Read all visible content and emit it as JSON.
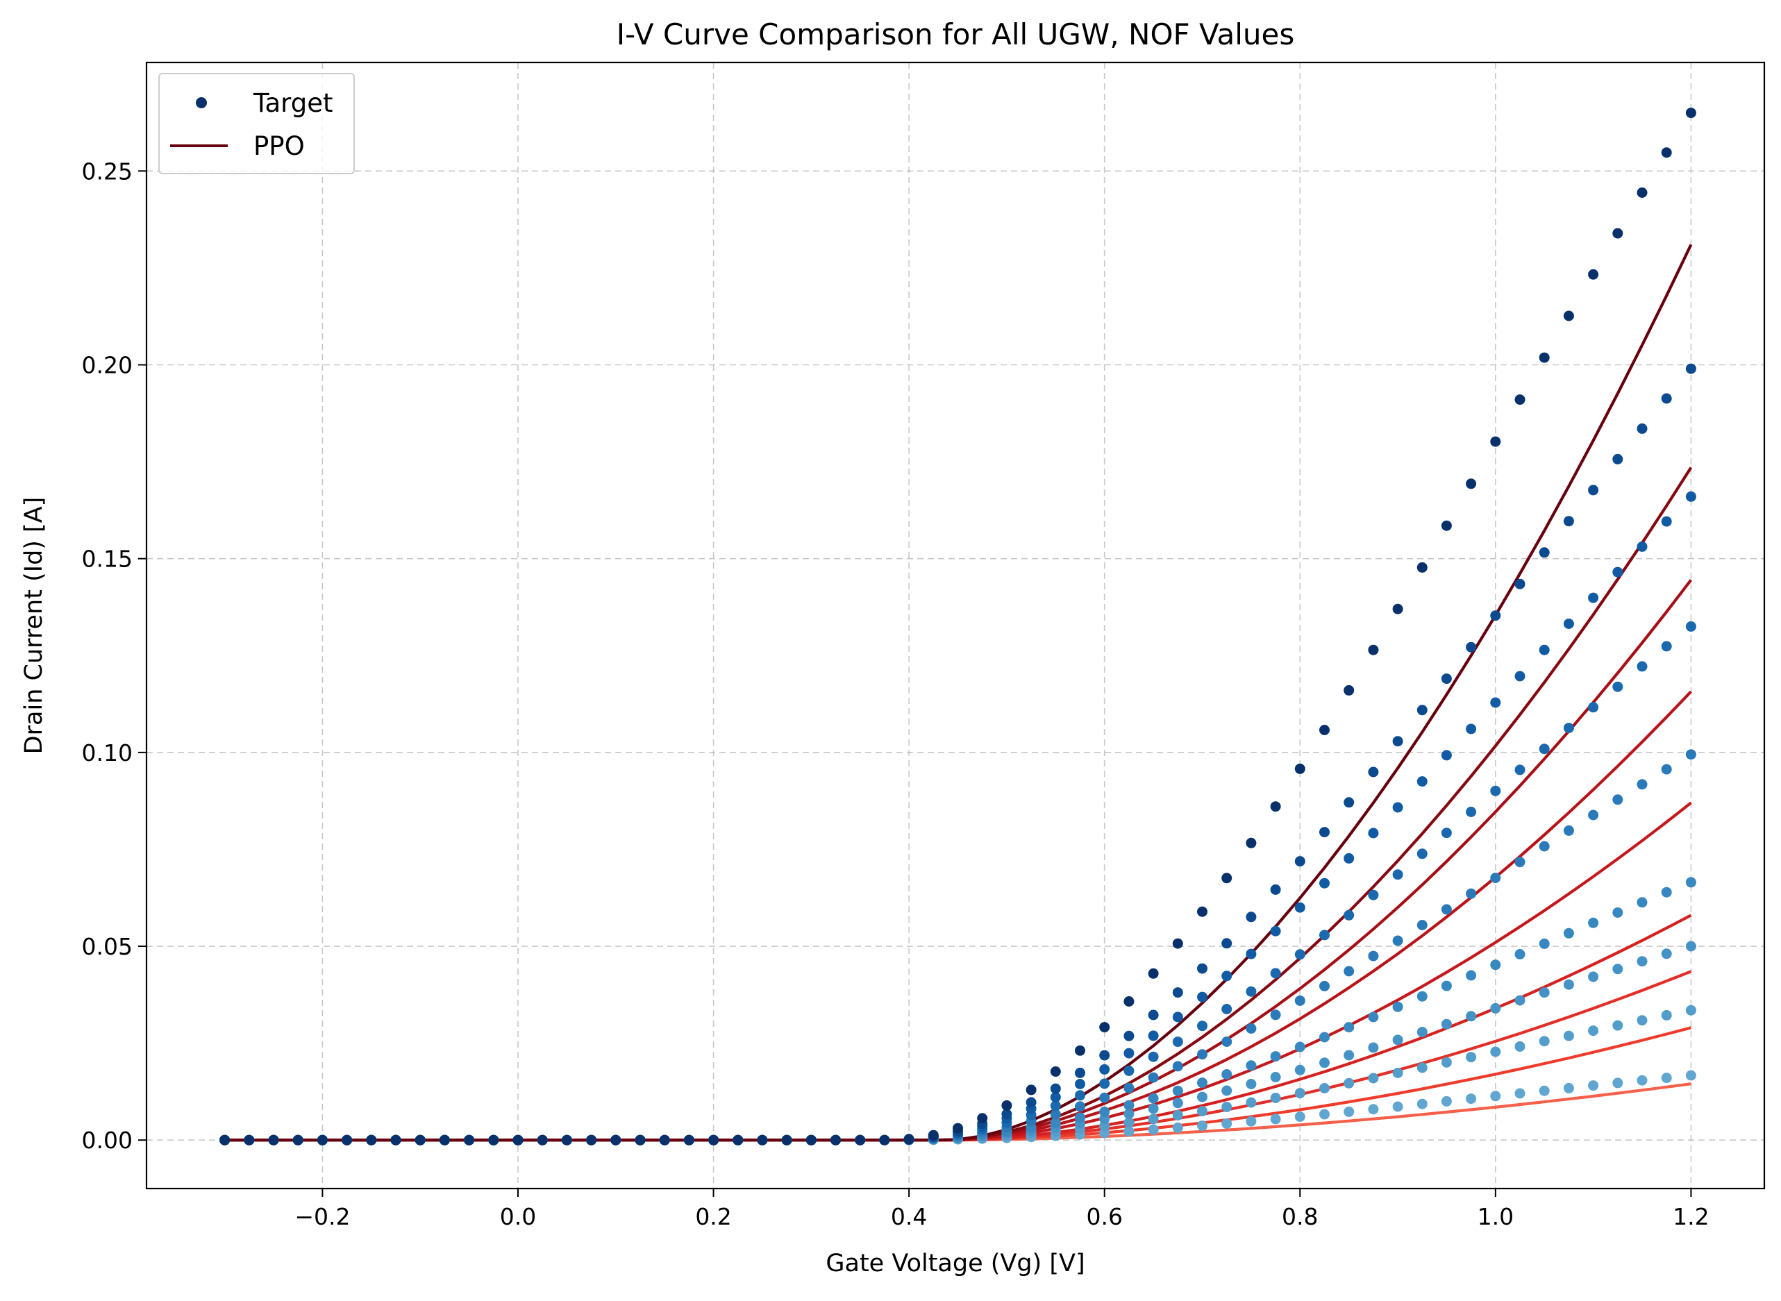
{
  "chart_data": {
    "type": "scatter",
    "title": "I-V Curve Comparison for All UGW, NOF Values",
    "xlabel": "Gate Voltage (Vg) [V]",
    "ylabel": "Drain Current (Id) [A]",
    "xlim": [
      -0.38,
      1.275
    ],
    "ylim": [
      -0.0125,
      0.278
    ],
    "x_ticks": [
      -0.2,
      0.0,
      0.2,
      0.4,
      0.6,
      0.8,
      1.0,
      1.2
    ],
    "x_tick_labels": [
      "−0.2",
      "0.0",
      "0.2",
      "0.4",
      "0.6",
      "0.8",
      "1.0",
      "1.2"
    ],
    "y_ticks": [
      0.0,
      0.05,
      0.1,
      0.15,
      0.2,
      0.25
    ],
    "y_tick_labels": [
      "0.00",
      "0.05",
      "0.10",
      "0.15",
      "0.20",
      "0.25"
    ],
    "grid": true,
    "legend": {
      "placement": "top-left",
      "entries": [
        {
          "label": "Target",
          "marker": "dot",
          "color": "#08306b"
        },
        {
          "label": "PPO",
          "marker": "line",
          "color": "#67000d"
        }
      ]
    },
    "x_range": {
      "start": -0.3,
      "end": 1.2,
      "step": 0.025
    },
    "target_series": [
      {
        "y_at_1_2": 0.265,
        "color": "#08306b"
      },
      {
        "y_at_1_2": 0.199,
        "color": "#0b4a8e"
      },
      {
        "y_at_1_2": 0.166,
        "color": "#105ba4"
      },
      {
        "y_at_1_2": 0.1325,
        "color": "#1a68ae"
      },
      {
        "y_at_1_2": 0.0995,
        "color": "#2a7ab9"
      },
      {
        "y_at_1_2": 0.0665,
        "color": "#3787c0"
      },
      {
        "y_at_1_2": 0.05,
        "color": "#4592c6"
      },
      {
        "y_at_1_2": 0.0335,
        "color": "#539dcb"
      },
      {
        "y_at_1_2": 0.0167,
        "color": "#60a6d0"
      }
    ],
    "ppo_series": [
      {
        "y_at_1_2": 0.231,
        "color": "#67000d"
      },
      {
        "y_at_1_2": 0.1735,
        "color": "#860811"
      },
      {
        "y_at_1_2": 0.1445,
        "color": "#a50f15"
      },
      {
        "y_at_1_2": 0.1157,
        "color": "#b81419"
      },
      {
        "y_at_1_2": 0.087,
        "color": "#c4181d"
      },
      {
        "y_at_1_2": 0.058,
        "color": "#d52221"
      },
      {
        "y_at_1_2": 0.0435,
        "color": "#e32f27"
      },
      {
        "y_at_1_2": 0.029,
        "color": "#ef3b2c"
      },
      {
        "y_at_1_2": 0.0145,
        "color": "#f4604a"
      }
    ]
  }
}
